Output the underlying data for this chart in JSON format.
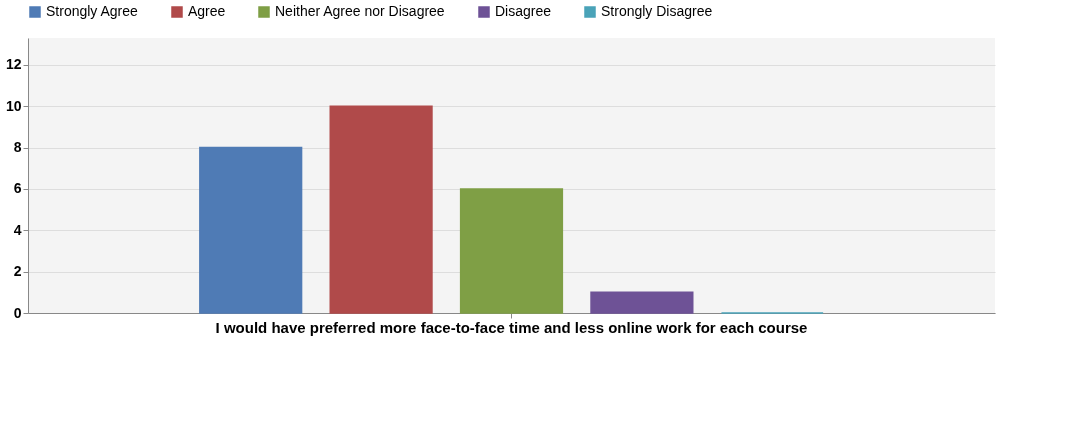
{
  "chart_data": {
    "type": "bar",
    "categories": [
      "I would have preferred more face-to-face time and less online work for each course"
    ],
    "series": [
      {
        "name": "Strongly Agree",
        "color": "#4f7bb5",
        "values": [
          8
        ]
      },
      {
        "name": "Agree",
        "color": "#b04a4a",
        "values": [
          10
        ]
      },
      {
        "name": "Neither Agree nor Disagree",
        "color": "#7f9f45",
        "values": [
          6
        ]
      },
      {
        "name": "Disagree",
        "color": "#6e5296",
        "values": [
          1
        ]
      },
      {
        "name": "Strongly Disagree",
        "color": "#4aa3b8",
        "values": [
          0
        ]
      }
    ],
    "ylim": [
      0,
      13.3
    ],
    "yticks": [
      0,
      2,
      4,
      6,
      8,
      10,
      12
    ],
    "grid": "y",
    "legend": "top"
  }
}
